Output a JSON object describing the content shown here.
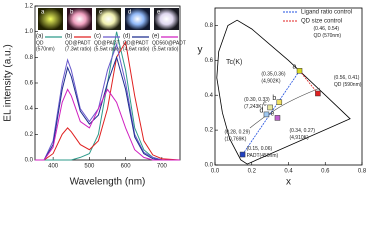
{
  "chart_data": [
    {
      "type": "line",
      "x_label": "Wavelength (nm)",
      "y_label": "EL intensity (a.u.)",
      "photo_labels": [
        "a",
        "b",
        "c",
        "d",
        "e"
      ],
      "x": [
        350,
        375,
        400,
        425,
        440,
        450,
        475,
        500,
        525,
        550,
        575,
        600,
        625,
        650,
        675,
        700,
        750
      ],
      "series": [
        {
          "label": "(a)",
          "name": "QD",
          "note": "(570nm)",
          "color": "#2e9a8a",
          "values": [
            0,
            0,
            0,
            0,
            0,
            0,
            0.02,
            0.05,
            0.2,
            0.6,
            1.0,
            0.7,
            0.25,
            0.08,
            0.02,
            0,
            0
          ]
        },
        {
          "label": "(b)",
          "name": "QD@PADT",
          "note": "(7.3wt ratio)",
          "color": "#e02020",
          "values": [
            0,
            0,
            0.05,
            0.2,
            0.25,
            0.22,
            0.12,
            0.08,
            0.15,
            0.4,
            0.8,
            0.92,
            0.5,
            0.15,
            0.04,
            0.01,
            0
          ]
        },
        {
          "label": "(c)",
          "name": "QD@PADT",
          "note": "(5.5wt ratio)",
          "color": "#6a5acd",
          "values": [
            0,
            0,
            0.15,
            0.6,
            0.78,
            0.7,
            0.4,
            0.3,
            0.4,
            0.7,
            0.9,
            0.6,
            0.2,
            0.06,
            0.02,
            0,
            0
          ]
        },
        {
          "label": "(d)",
          "name": "QD@PADT",
          "note": "(4.6wt ratio)",
          "color": "#1f2f8f",
          "values": [
            0,
            0,
            0.12,
            0.55,
            0.72,
            0.65,
            0.38,
            0.28,
            0.35,
            0.6,
            0.8,
            0.55,
            0.18,
            0.05,
            0.01,
            0,
            0
          ]
        },
        {
          "label": "(e)",
          "name": "QD560@PADT",
          "note": "(5.5wt ratio)",
          "color": "#d020c0",
          "values": [
            0,
            0,
            0.1,
            0.45,
            0.55,
            0.5,
            0.3,
            0.25,
            0.4,
            0.55,
            0.45,
            0.25,
            0.08,
            0.02,
            0,
            0,
            0
          ]
        }
      ],
      "xlim": [
        350,
        750
      ],
      "xticks": [
        400,
        500,
        600,
        700
      ],
      "ylim": [
        0,
        1.2
      ],
      "yticks": [
        {
          "value": 0,
          "label": "0.0"
        },
        {
          "value": 0.2,
          "label": "0.2"
        },
        {
          "value": 0.4,
          "label": "0.4"
        },
        {
          "value": 0.6,
          "label": "0.6"
        },
        {
          "value": 0.8,
          "label": "0.8"
        },
        {
          "value": 1.0,
          "label": "1.0"
        },
        {
          "value": 1.2,
          "label": "1.2"
        }
      ]
    },
    {
      "type": "scatter",
      "x_label": "x",
      "y_label": "y",
      "annotation": "Tc(K)",
      "legend": [
        {
          "name": "Ligand ratio control",
          "color": "#2050e0"
        },
        {
          "name": "QD size control",
          "color": "#e02020"
        }
      ],
      "points": [
        {
          "label": "a",
          "x": 0.46,
          "y": 0.54,
          "color": "#d8d820",
          "annotation": [
            "(0.46, 0.54)",
            "QD (570nm)"
          ]
        },
        {
          "label": "",
          "x": 0.56,
          "y": 0.41,
          "color": "#e02020",
          "annotation": [
            "(0.56, 0.41)",
            "QD (590nm)"
          ]
        },
        {
          "label": "b",
          "x": 0.35,
          "y": 0.36,
          "color": "#f0e060",
          "annotation": [
            "(0.35,0.36)",
            "(4,902K)"
          ]
        },
        {
          "label": "c",
          "x": 0.3,
          "y": 0.33,
          "color": "#e8e8a0",
          "annotation": [
            "(0.30, 0.33)",
            "(7,243K)"
          ]
        },
        {
          "label": "d",
          "x": 0.28,
          "y": 0.29,
          "color": "#a0c8f0",
          "annotation": [
            "(0.28, 0.29)",
            "(10,769K)"
          ]
        },
        {
          "label": "e",
          "x": 0.34,
          "y": 0.27,
          "color": "#c060d0",
          "annotation": [
            "(0.34, 0.27)",
            "(4,910K)"
          ]
        },
        {
          "label": "",
          "x": 0.15,
          "y": 0.06,
          "color": "#2040c0",
          "annotation": [
            "(0.15, 0.06)",
            "PADT(450nm)"
          ]
        }
      ],
      "xlim": [
        0,
        0.8
      ],
      "xticks": [
        {
          "value": 0,
          "label": "0.0"
        },
        {
          "value": 0.2,
          "label": "0.2"
        },
        {
          "value": 0.4,
          "label": "0.4"
        },
        {
          "value": 0.6,
          "label": "0.6"
        },
        {
          "value": 0.8,
          "label": "0.8"
        }
      ],
      "ylim": [
        0,
        0.9
      ],
      "yticks": [
        {
          "value": 0,
          "label": "0.0"
        },
        {
          "value": 0.2,
          "label": "0.2"
        },
        {
          "value": 0.4,
          "label": "0.4"
        },
        {
          "value": 0.6,
          "label": "0.6"
        },
        {
          "value": 0.8,
          "label": "0.8"
        }
      ]
    }
  ]
}
